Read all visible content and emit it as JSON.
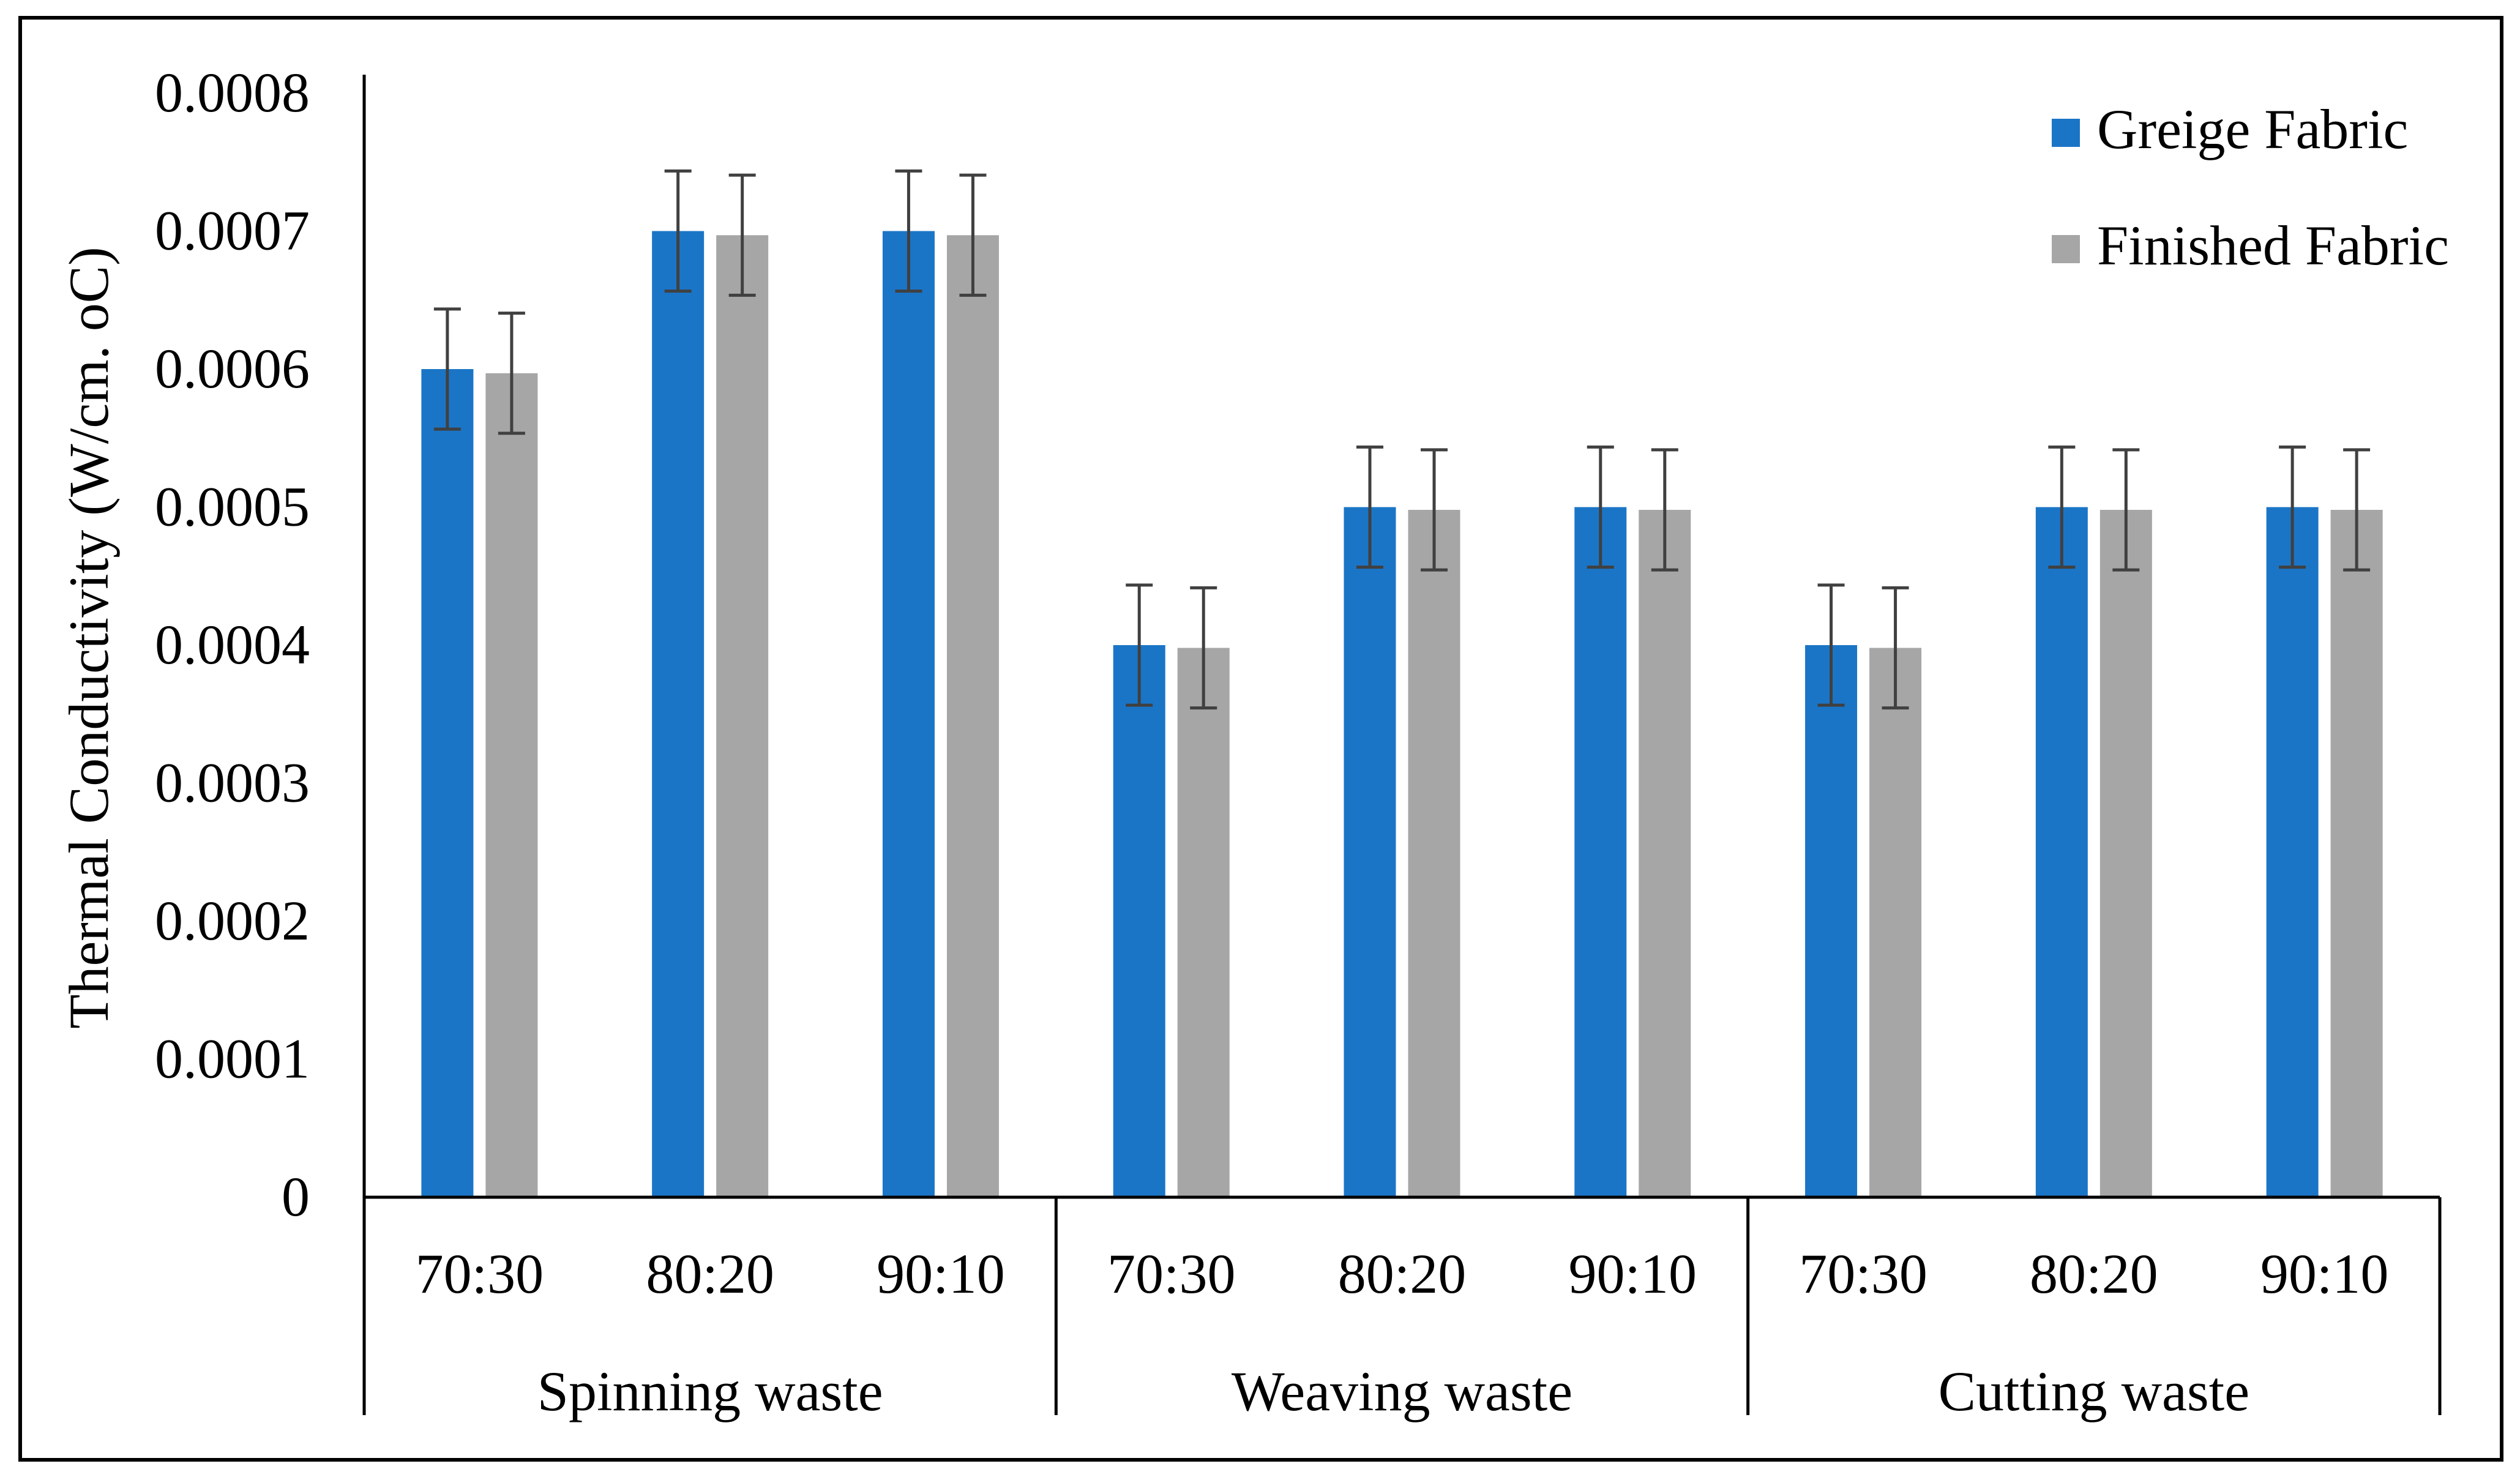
{
  "chart_data": {
    "type": "bar",
    "title": "",
    "ylabel": "Thermal Conductivity (W/cm. oC)",
    "xlabel": "",
    "ylim": [
      0,
      0.0008
    ],
    "y_ticks": [
      0,
      0.0001,
      0.0002,
      0.0003,
      0.0004,
      0.0005,
      0.0006,
      0.0007,
      0.0008
    ],
    "y_tick_labels": [
      "0",
      "0.0001",
      "0.0002",
      "0.0003",
      "0.0004",
      "0.0005",
      "0.0006",
      "0.0007",
      "0.0008"
    ],
    "grid": false,
    "legend_position": "top-right",
    "groups": [
      {
        "label": "Spinning waste",
        "categories": [
          "70:30",
          "80:20",
          "90:10"
        ]
      },
      {
        "label": "Weaving waste",
        "categories": [
          "70:30",
          "80:20",
          "90:10"
        ]
      },
      {
        "label": "Cutting waste",
        "categories": [
          "70:30",
          "80:20",
          "90:10"
        ]
      }
    ],
    "series": [
      {
        "name": "Greige Fabric",
        "color": "#1b75c6",
        "values": [
          0.0006,
          0.0007,
          0.0007,
          0.0004,
          0.0005,
          0.0005,
          0.0004,
          0.0005,
          0.0005
        ],
        "errors": [
          4.35e-05,
          4.35e-05,
          4.35e-05,
          4.35e-05,
          4.35e-05,
          4.35e-05,
          4.35e-05,
          4.35e-05,
          4.35e-05
        ]
      },
      {
        "name": "Finished Fabric",
        "color": "#a6a6a6",
        "values": [
          0.000597,
          0.000697,
          0.000697,
          0.000398,
          0.000498,
          0.000498,
          0.000398,
          0.000498,
          0.000498
        ],
        "errors": [
          4.35e-05,
          4.35e-05,
          4.35e-05,
          4.35e-05,
          4.35e-05,
          4.35e-05,
          4.35e-05,
          4.35e-05,
          4.35e-05
        ]
      }
    ],
    "error_bar_color": "#404040"
  }
}
